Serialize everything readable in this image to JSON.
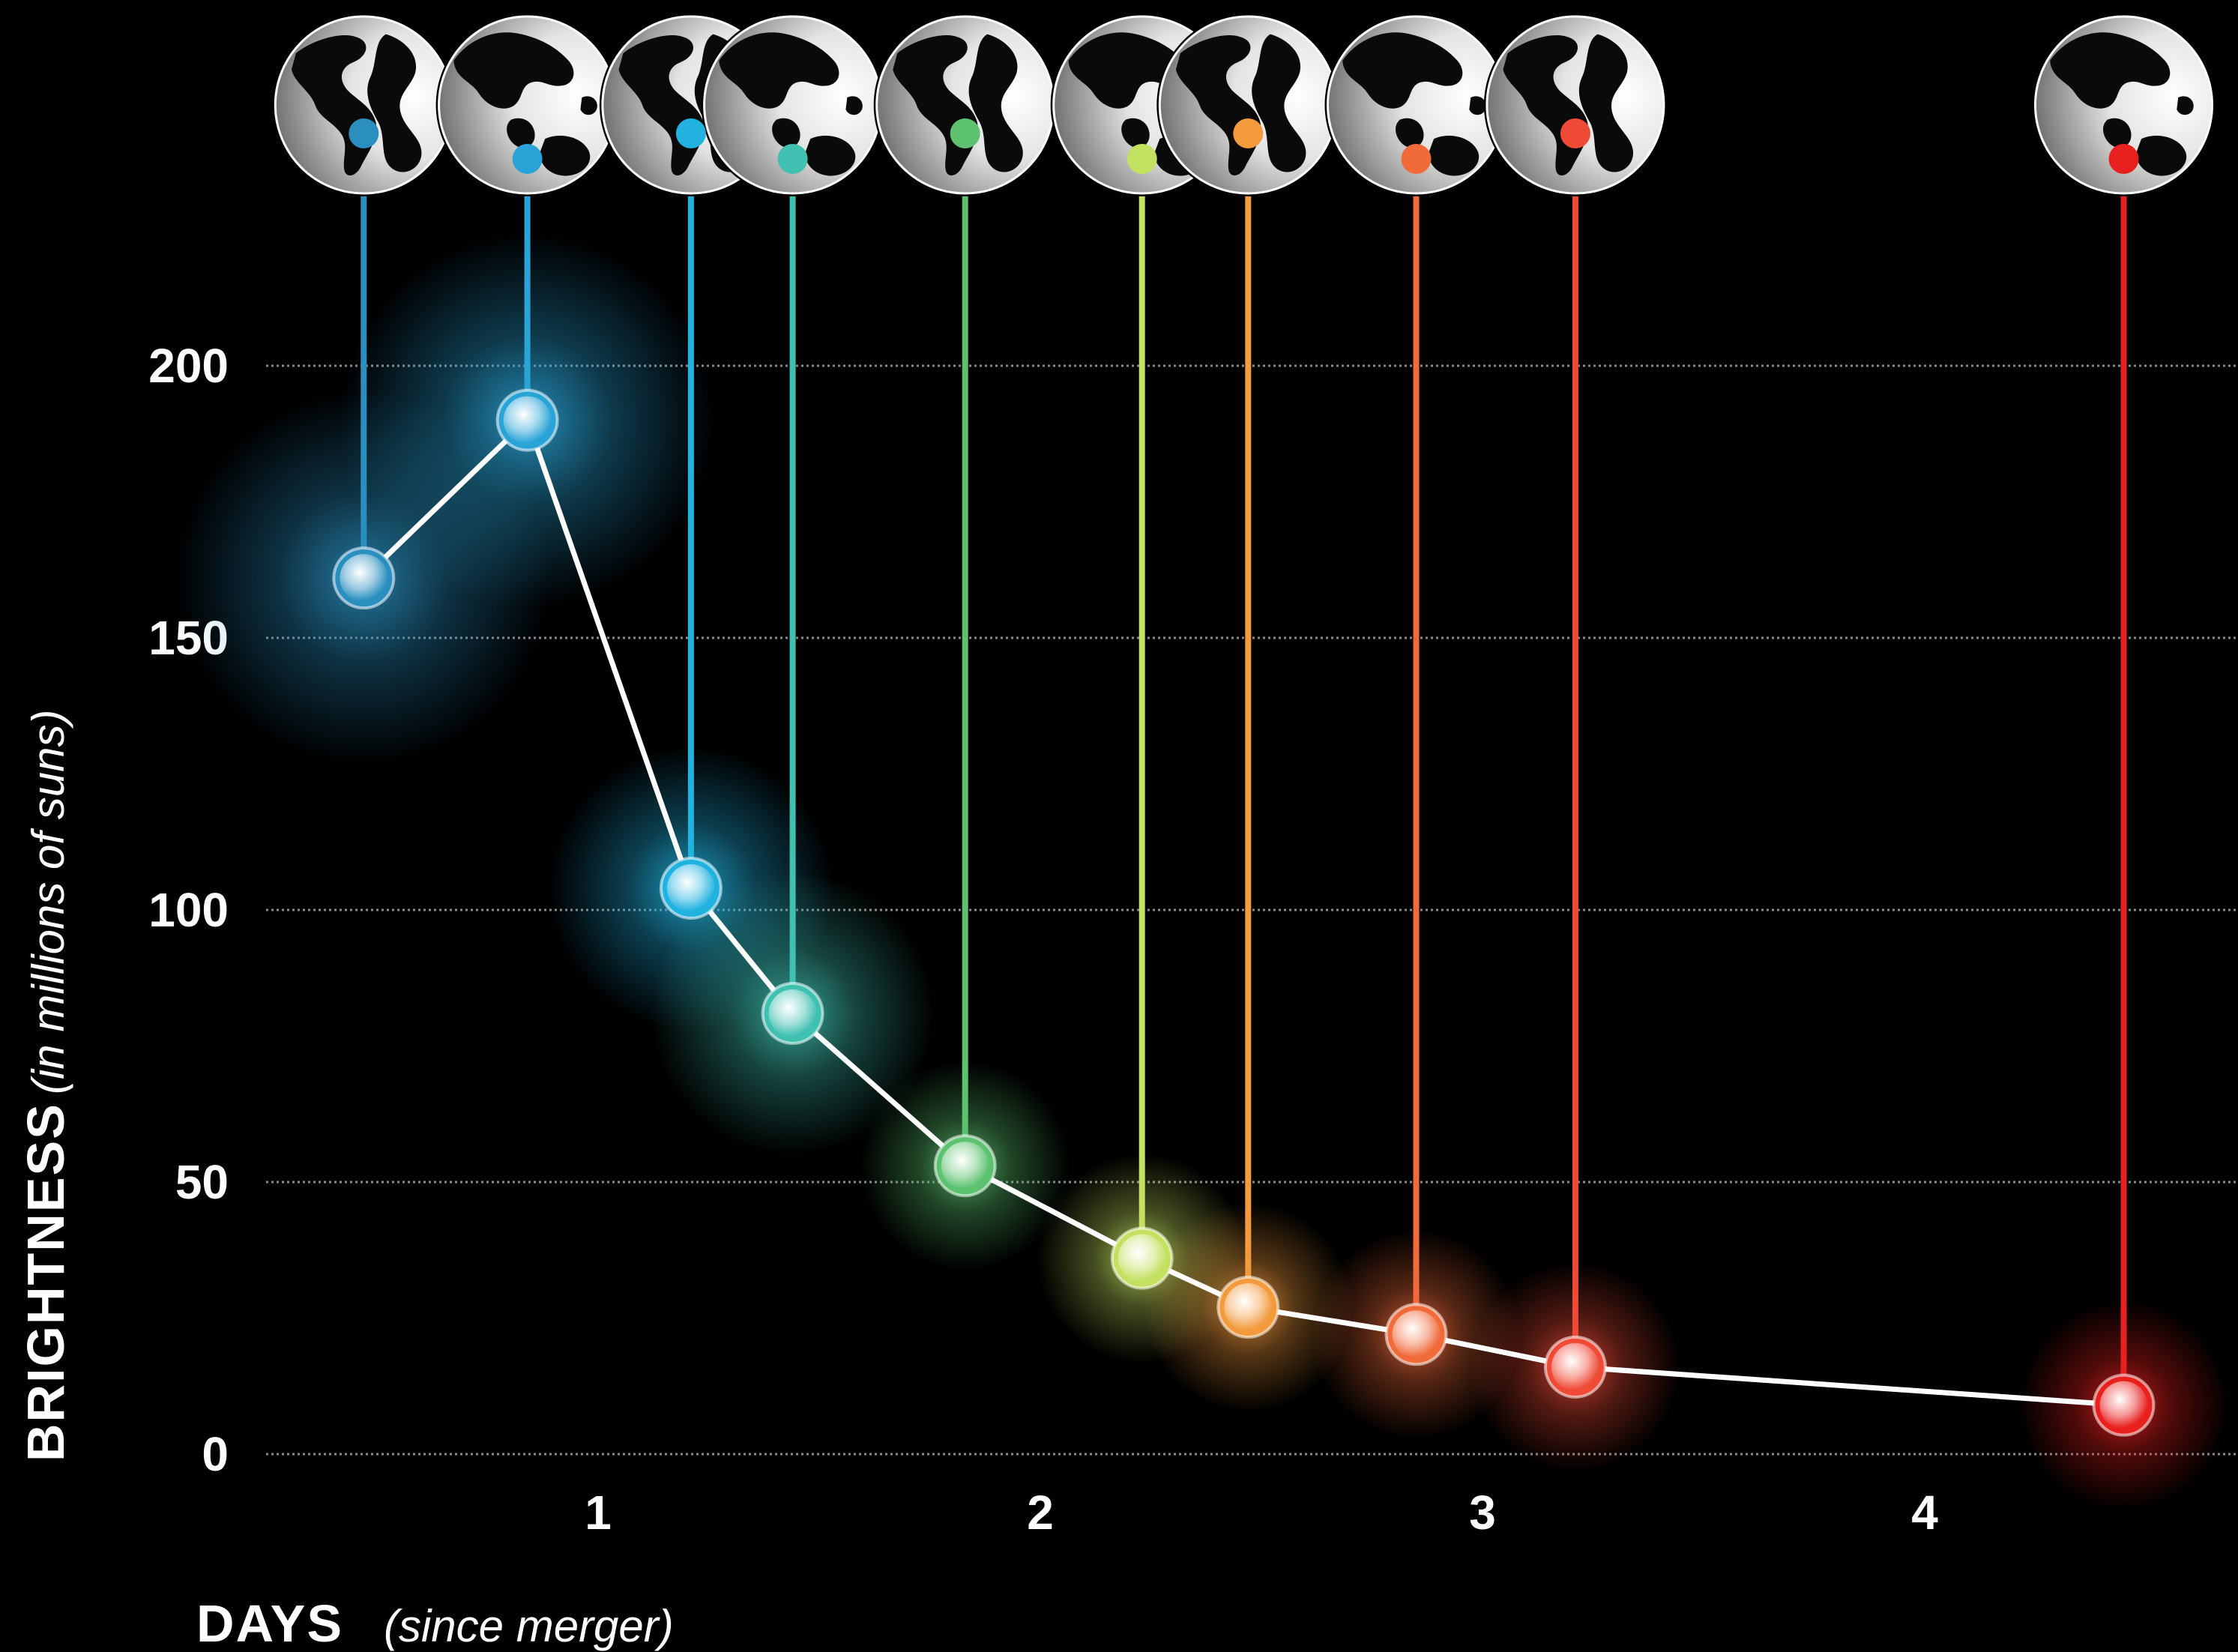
{
  "chart_data": {
    "type": "line",
    "title": "",
    "xlabel": "DAYS",
    "xlabel_note": "(since merger)",
    "ylabel": "BRIGHTNESS",
    "ylabel_note": "(in millions of suns)",
    "xlim": [
      0.25,
      4.6
    ],
    "ylim": [
      0,
      200
    ],
    "grid": true,
    "x_ticks": [
      {
        "value": 1,
        "label": "1"
      },
      {
        "value": 2,
        "label": "2"
      },
      {
        "value": 3,
        "label": "3"
      },
      {
        "value": 4,
        "label": "4"
      }
    ],
    "y_ticks": [
      {
        "value": 0,
        "label": "0"
      },
      {
        "value": 50,
        "label": "50"
      },
      {
        "value": 100,
        "label": "100"
      },
      {
        "value": 150,
        "label": "150"
      },
      {
        "value": 200,
        "label": "200"
      }
    ],
    "series": [
      {
        "points": [
          {
            "x": 0.47,
            "y": 161,
            "color": "#2a8fbf"
          },
          {
            "x": 0.84,
            "y": 190,
            "color": "#2aa4d6"
          },
          {
            "x": 1.21,
            "y": 104,
            "color": "#22b2e0"
          },
          {
            "x": 1.44,
            "y": 81,
            "color": "#3fc0b0"
          },
          {
            "x": 1.83,
            "y": 53,
            "color": "#5cc270"
          },
          {
            "x": 2.23,
            "y": 36,
            "color": "#c4e060"
          },
          {
            "x": 2.47,
            "y": 27,
            "color": "#f29a3c"
          },
          {
            "x": 2.85,
            "y": 22,
            "color": "#f06a3a"
          },
          {
            "x": 3.21,
            "y": 16,
            "color": "#ee4a36"
          },
          {
            "x": 4.45,
            "y": 9,
            "color": "#e8201e"
          }
        ]
      }
    ],
    "globe_icon": "globe-icon"
  }
}
